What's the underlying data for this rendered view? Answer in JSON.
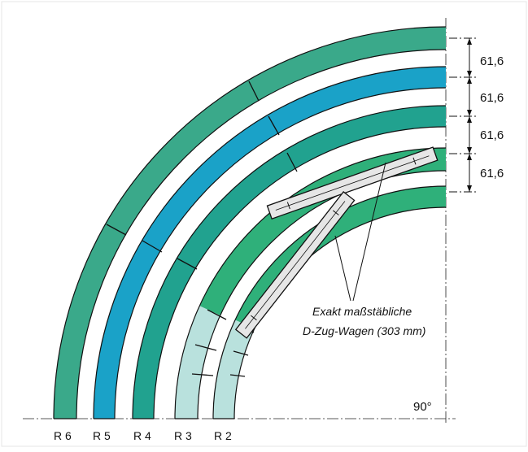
{
  "dimensions": {
    "label_a": "61,6",
    "label_b": "61,6",
    "label_c": "61,6",
    "label_d": "61,6"
  },
  "angle_label": "90°",
  "radius_labels": [
    "R 6",
    "R 5",
    "R 4",
    "R 3",
    "R 2"
  ],
  "annotation": {
    "line1": "Exakt maßstäbliche",
    "line2": "D-Zug-Wagen (303 mm)"
  },
  "colors": {
    "R6": "#3aa98a",
    "R5": "#1aa2c8",
    "R4": "#21a28f",
    "R3": "#2fb07a",
    "R2": "#2fb07a",
    "R3_partial": "#b9e1dd",
    "wagon": "#e6e6e6",
    "outline": "#111111",
    "background": "#ffffff"
  }
}
